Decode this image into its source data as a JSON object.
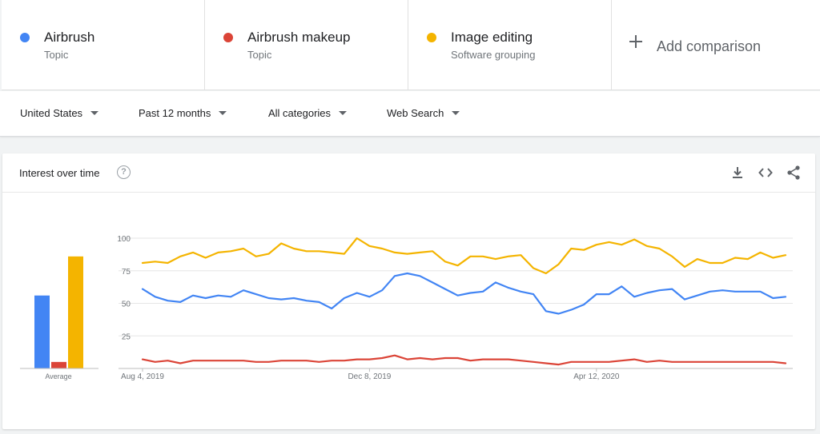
{
  "terms": [
    {
      "name": "Airbrush",
      "sub": "Topic",
      "color": "#4285f4"
    },
    {
      "name": "Airbrush makeup",
      "sub": "Topic",
      "color": "#db4437"
    },
    {
      "name": "Image editing",
      "sub": "Software grouping",
      "color": "#f4b400"
    }
  ],
  "add_comparison": "Add comparison",
  "filters": {
    "region": "United States",
    "time": "Past 12 months",
    "category": "All categories",
    "search_type": "Web Search"
  },
  "card": {
    "title": "Interest over time",
    "help_icon": "help-circle-icon",
    "download_icon": "download-icon",
    "embed_icon": "code-icon",
    "share_icon": "share-icon"
  },
  "chart_data": [
    {
      "type": "bar",
      "categories": [
        "Airbrush",
        "Airbrush makeup",
        "Image editing"
      ],
      "values": [
        56,
        5,
        86
      ],
      "xlabel": "Average",
      "ylim": [
        0,
        100
      ],
      "colors": [
        "#4285f4",
        "#db4437",
        "#f4b400"
      ]
    },
    {
      "type": "line",
      "x_tick_labels": [
        "Aug 4, 2019",
        "Dec 8, 2019",
        "Apr 12, 2020"
      ],
      "x_tick_index": [
        0,
        18,
        36
      ],
      "y_ticks": [
        25,
        50,
        75,
        100
      ],
      "ylim": [
        0,
        100
      ],
      "grid": true,
      "series": [
        {
          "name": "Airbrush",
          "color": "#4285f4",
          "values": [
            61,
            55,
            52,
            51,
            56,
            54,
            56,
            55,
            60,
            57,
            54,
            53,
            54,
            52,
            51,
            46,
            54,
            58,
            55,
            60,
            71,
            73,
            71,
            66,
            61,
            56,
            58,
            59,
            66,
            62,
            59,
            57,
            44,
            42,
            45,
            49,
            57,
            57,
            63,
            55,
            58,
            60,
            61,
            53,
            56,
            59,
            60,
            59,
            59,
            59,
            54,
            55
          ]
        },
        {
          "name": "Airbrush makeup",
          "color": "#db4437",
          "values": [
            7,
            5,
            6,
            4,
            6,
            6,
            6,
            6,
            6,
            5,
            5,
            6,
            6,
            6,
            5,
            6,
            6,
            7,
            7,
            8,
            10,
            7,
            8,
            7,
            8,
            8,
            6,
            7,
            7,
            7,
            6,
            5,
            4,
            3,
            5,
            5,
            5,
            5,
            6,
            7,
            5,
            6,
            5,
            5,
            5,
            5,
            5,
            5,
            5,
            5,
            5,
            4
          ]
        },
        {
          "name": "Image editing",
          "color": "#f4b400",
          "values": [
            81,
            82,
            81,
            86,
            89,
            85,
            89,
            90,
            92,
            86,
            88,
            96,
            92,
            90,
            90,
            89,
            88,
            100,
            94,
            92,
            89,
            88,
            89,
            90,
            82,
            79,
            86,
            86,
            84,
            86,
            87,
            77,
            73,
            80,
            92,
            91,
            95,
            97,
            95,
            99,
            94,
            92,
            86,
            78,
            84,
            81,
            81,
            85,
            84,
            89,
            85,
            87
          ]
        }
      ]
    }
  ]
}
